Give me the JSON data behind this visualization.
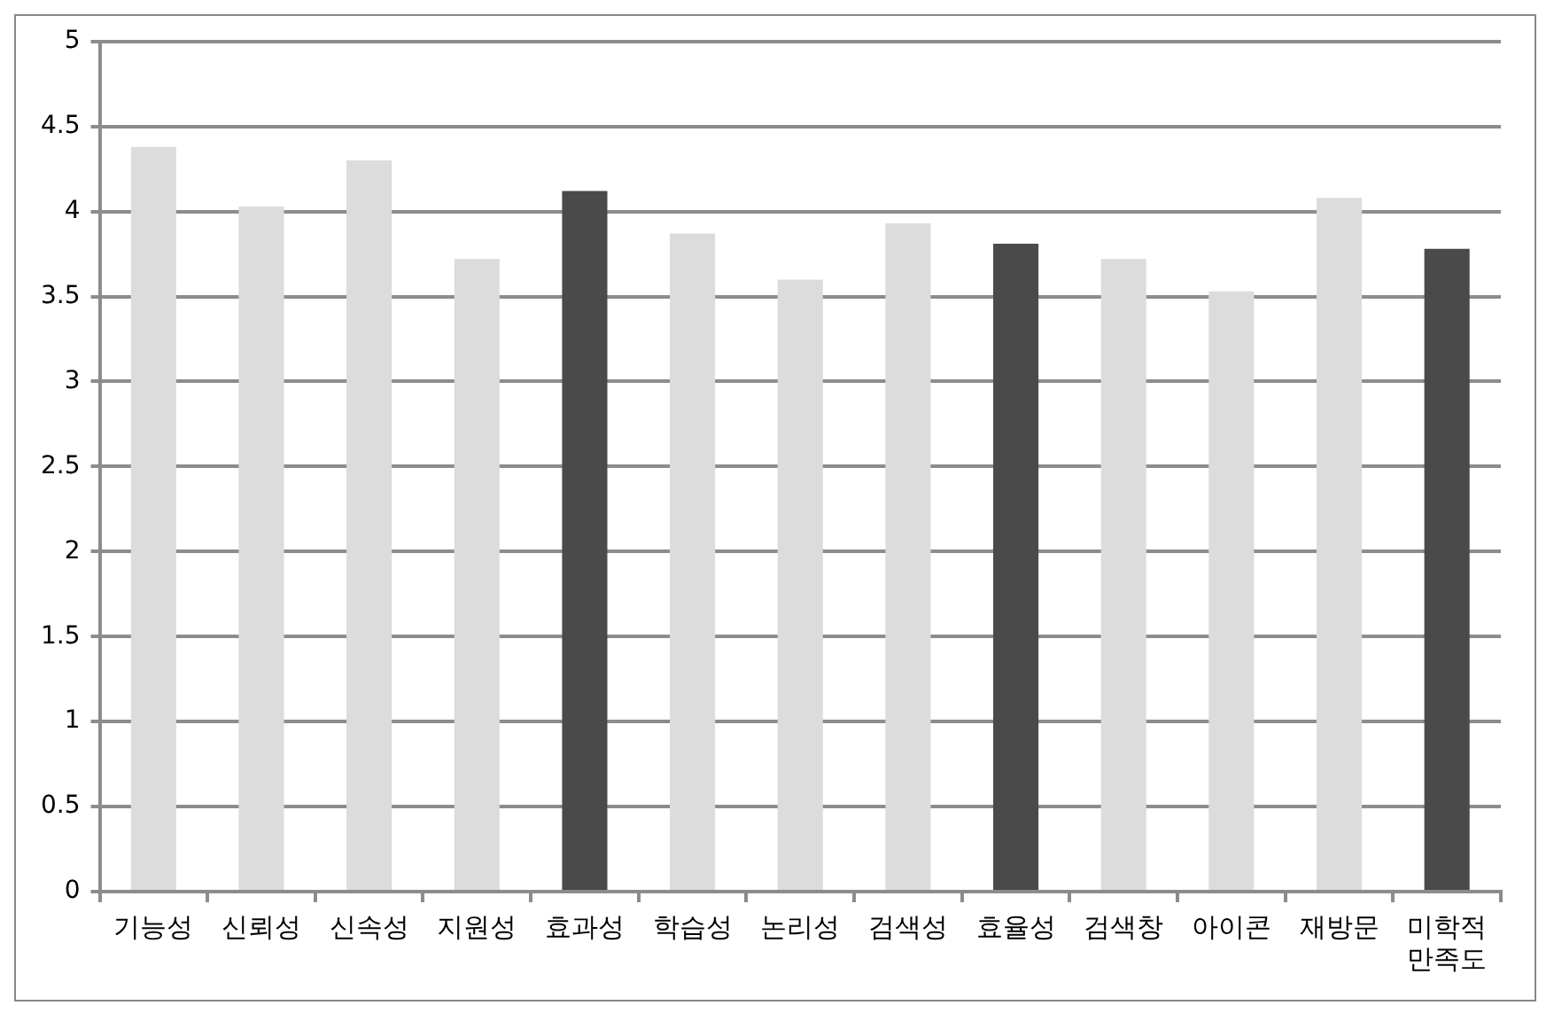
{
  "chart_data": {
    "type": "bar",
    "categories": [
      "기능성",
      "신뢰성",
      "신속성",
      "지원성",
      "효과성",
      "학습성",
      "논리성",
      "검색성",
      "효율성",
      "검색창",
      "아이콘",
      "재방문",
      "미학적 만족도"
    ],
    "values": [
      4.38,
      4.03,
      4.3,
      3.72,
      4.12,
      3.87,
      3.6,
      3.93,
      3.81,
      3.72,
      3.53,
      4.08,
      3.78
    ],
    "colors": [
      "#dcdcdc",
      "#dcdcdc",
      "#dcdcdc",
      "#dcdcdc",
      "#4a4a4a",
      "#dcdcdc",
      "#dcdcdc",
      "#dcdcdc",
      "#4a4a4a",
      "#dcdcdc",
      "#dcdcdc",
      "#dcdcdc",
      "#4a4a4a"
    ],
    "ylim": [
      0,
      5
    ],
    "yticks": [
      0,
      0.5,
      1,
      1.5,
      2,
      2.5,
      3,
      3.5,
      4,
      4.5,
      5
    ],
    "grid": "y",
    "legend": false
  }
}
